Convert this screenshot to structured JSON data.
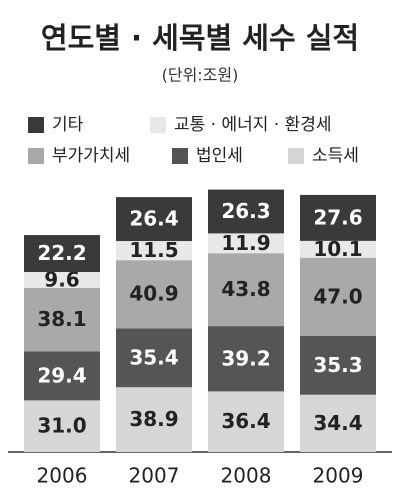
{
  "chart_data": {
    "type": "stacked_bar",
    "title": "연도별 · 세목별 세수 실적",
    "subtitle": "(단위:조원)",
    "categories": [
      "2006",
      "2007",
      "2008",
      "2009"
    ],
    "series": [
      {
        "name": "기타",
        "color": "#3a3a3a",
        "values": [
          22.2,
          26.4,
          26.3,
          27.6
        ]
      },
      {
        "name": "교통 · 에너지 · 환경세",
        "color": "#e8e8e8",
        "values": [
          9.6,
          11.5,
          11.9,
          10.1
        ]
      },
      {
        "name": "부가가치세",
        "color": "#a9a9a9",
        "values": [
          38.1,
          40.9,
          43.8,
          47
        ],
        "value_labels": [
          "38.1",
          "40.9",
          "43.8",
          "47.0"
        ]
      },
      {
        "name": "법인세",
        "color": "#555555",
        "values": [
          29.4,
          35.4,
          39.2,
          35.3
        ]
      },
      {
        "name": "소득세",
        "color": "#d6d6d6",
        "values": [
          31,
          38.9,
          36.4,
          34.4
        ],
        "value_labels": [
          "31.0",
          "38.9",
          "36.4",
          "34.4"
        ]
      }
    ]
  }
}
